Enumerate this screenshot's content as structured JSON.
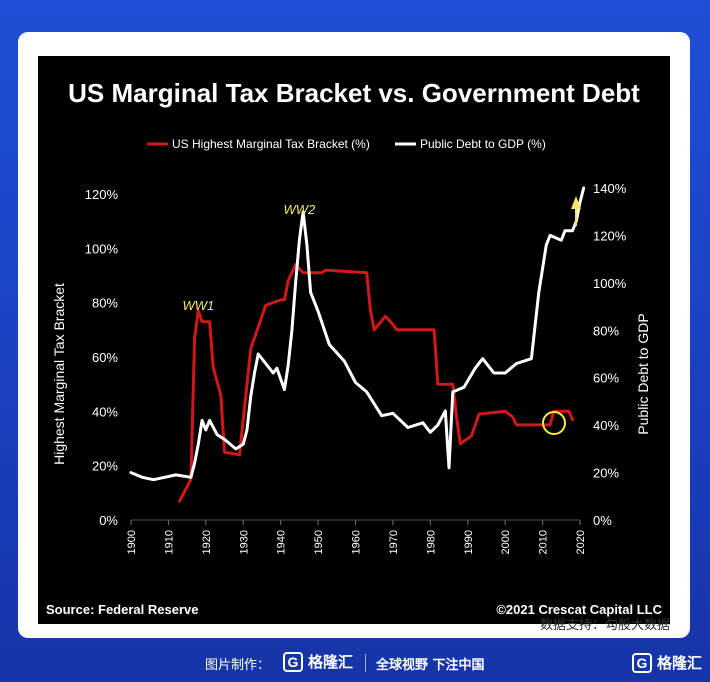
{
  "chart_data": {
    "type": "line",
    "title": "US Marginal Tax Bracket vs. Government Debt",
    "ylabel_left": "Highest Marginal Tax Bracket",
    "ylabel_right": "Public Debt to GDP",
    "ylim_left": [
      0,
      120
    ],
    "ylim_right": [
      0,
      140
    ],
    "x_ticks": [
      1900,
      1910,
      1920,
      1930,
      1940,
      1950,
      1960,
      1970,
      1980,
      1990,
      2000,
      2010,
      2020
    ],
    "y_left_ticks": [
      "0%",
      "20%",
      "40%",
      "60%",
      "80%",
      "100%",
      "120%"
    ],
    "y_right_ticks": [
      "0%",
      "20%",
      "40%",
      "60%",
      "80%",
      "100%",
      "120%",
      "140%"
    ],
    "legend": [
      {
        "name": "US Highest Marginal Tax Bracket (%)",
        "color": "#d01818"
      },
      {
        "name": "Public Debt to GDP (%)",
        "color": "#ffffff"
      }
    ],
    "annotations": [
      {
        "text": "WW1",
        "x": 1918
      },
      {
        "text": "WW2",
        "x": 1945
      }
    ],
    "source": "Source: Federal Reserve",
    "copyright": "©2021 Crescat Capital LLC",
    "series": [
      {
        "name": "US Highest Marginal Tax Bracket (%)",
        "axis": "left",
        "color": "#d01818",
        "points": [
          [
            1913,
            7
          ],
          [
            1916,
            15
          ],
          [
            1917,
            67
          ],
          [
            1918,
            77
          ],
          [
            1919,
            73
          ],
          [
            1921,
            73
          ],
          [
            1922,
            56
          ],
          [
            1924,
            46
          ],
          [
            1925,
            25
          ],
          [
            1929,
            24
          ],
          [
            1932,
            63
          ],
          [
            1936,
            79
          ],
          [
            1940,
            81
          ],
          [
            1941,
            81
          ],
          [
            1942,
            88
          ],
          [
            1944,
            94
          ],
          [
            1946,
            91
          ],
          [
            1950,
            91
          ],
          [
            1951,
            91
          ],
          [
            1952,
            92
          ],
          [
            1963,
            91
          ],
          [
            1964,
            77
          ],
          [
            1965,
            70
          ],
          [
            1968,
            75
          ],
          [
            1970,
            72
          ],
          [
            1971,
            70
          ],
          [
            1981,
            70
          ],
          [
            1982,
            50
          ],
          [
            1986,
            50
          ],
          [
            1987,
            38
          ],
          [
            1988,
            28
          ],
          [
            1991,
            31
          ],
          [
            1993,
            39
          ],
          [
            2000,
            40
          ],
          [
            2002,
            38
          ],
          [
            2003,
            35
          ],
          [
            2012,
            35
          ],
          [
            2013,
            40
          ],
          [
            2017,
            40
          ],
          [
            2018,
            37
          ]
        ]
      },
      {
        "name": "Public Debt to GDP (%)",
        "axis": "right",
        "color": "#ffffff",
        "points": [
          [
            1900,
            20
          ],
          [
            1903,
            18
          ],
          [
            1906,
            17
          ],
          [
            1909,
            18
          ],
          [
            1912,
            19
          ],
          [
            1916,
            18
          ],
          [
            1917,
            24
          ],
          [
            1918,
            32
          ],
          [
            1919,
            42
          ],
          [
            1920,
            38
          ],
          [
            1921,
            42
          ],
          [
            1923,
            36
          ],
          [
            1925,
            34
          ],
          [
            1928,
            30
          ],
          [
            1930,
            32
          ],
          [
            1931,
            38
          ],
          [
            1932,
            52
          ],
          [
            1933,
            62
          ],
          [
            1934,
            70
          ],
          [
            1936,
            66
          ],
          [
            1938,
            62
          ],
          [
            1939,
            64
          ],
          [
            1941,
            55
          ],
          [
            1942,
            65
          ],
          [
            1943,
            80
          ],
          [
            1944,
            100
          ],
          [
            1945,
            118
          ],
          [
            1946,
            130
          ],
          [
            1947,
            116
          ],
          [
            1948,
            96
          ],
          [
            1950,
            88
          ],
          [
            1953,
            74
          ],
          [
            1957,
            67
          ],
          [
            1960,
            58
          ],
          [
            1963,
            54
          ],
          [
            1967,
            44
          ],
          [
            1970,
            45
          ],
          [
            1974,
            39
          ],
          [
            1978,
            41
          ],
          [
            1980,
            37
          ],
          [
            1982,
            40
          ],
          [
            1984,
            46
          ],
          [
            1985,
            22
          ],
          [
            1986,
            54
          ],
          [
            1989,
            56
          ],
          [
            1992,
            64
          ],
          [
            1994,
            68
          ],
          [
            1997,
            62
          ],
          [
            2000,
            62
          ],
          [
            2003,
            66
          ],
          [
            2007,
            68
          ],
          [
            2009,
            96
          ],
          [
            2011,
            116
          ],
          [
            2012,
            120
          ],
          [
            2015,
            118
          ],
          [
            2016,
            122
          ],
          [
            2018,
            122
          ],
          [
            2019,
            126
          ],
          [
            2020,
            134
          ],
          [
            2021,
            140
          ]
        ]
      }
    ]
  },
  "credit": "数据支持：勾股大数据",
  "footer": {
    "made_by": "图片制作：",
    "logo_mark": "G",
    "logo_text": "格隆汇",
    "slogan": "全球视野 下注中国"
  }
}
